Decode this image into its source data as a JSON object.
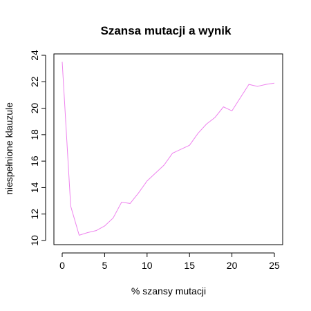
{
  "chart_data": {
    "type": "line",
    "title": "Szansa mutacji a wynik",
    "xlabel": "% szansy mutacji",
    "ylabel": "niespełnione klauzule",
    "xlim": [
      0,
      25
    ],
    "ylim": [
      10,
      24
    ],
    "xticks": [
      0,
      5,
      10,
      15,
      20,
      25
    ],
    "yticks": [
      10,
      12,
      14,
      16,
      18,
      20,
      22,
      24
    ],
    "grid": false,
    "series": [
      {
        "color": "#ee82ee",
        "x": [
          0,
          1,
          2,
          3,
          4,
          5,
          6,
          7,
          8,
          9,
          10,
          11,
          12,
          13,
          14,
          15,
          16,
          17,
          18,
          19,
          20,
          21,
          22,
          23,
          24,
          25
        ],
        "y": [
          23.5,
          12.6,
          10.4,
          10.6,
          10.75,
          11.1,
          11.7,
          12.9,
          12.8,
          13.6,
          14.5,
          15.1,
          15.7,
          16.6,
          16.9,
          17.2,
          18.1,
          18.8,
          19.3,
          20.1,
          19.8,
          20.8,
          21.8,
          21.65,
          21.8,
          21.9
        ]
      }
    ]
  }
}
